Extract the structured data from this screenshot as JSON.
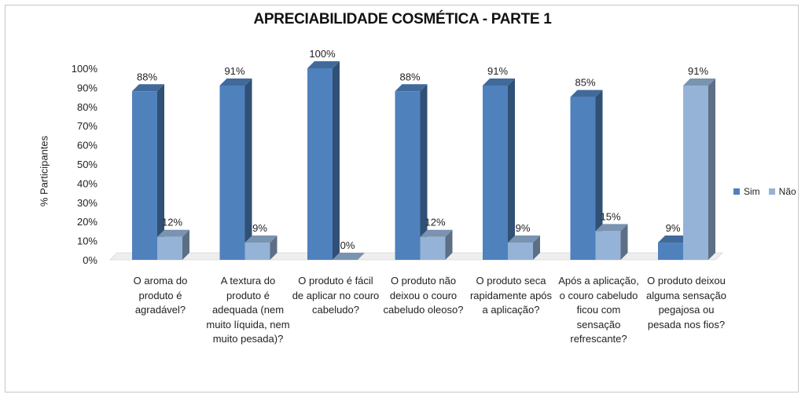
{
  "chart_data": {
    "type": "bar",
    "title": "APRECIABILIDADE COSMÉTICA - PARTE 1",
    "xlabel": "",
    "ylabel": "% Participantes",
    "ylim": [
      0,
      100
    ],
    "yticks": [
      "0%",
      "10%",
      "20%",
      "30%",
      "40%",
      "50%",
      "60%",
      "70%",
      "80%",
      "90%",
      "100%"
    ],
    "categories": [
      "O aroma do produto é agradável?",
      "A textura do produto é adequada (nem muito líquida, nem muito pesada)?",
      "O produto é fácil de aplicar no couro cabeludo?",
      "O produto não deixou o couro cabeludo oleoso?",
      "O produto seca rapidamente após a aplicação?",
      "Após a aplicação, o couro cabeludo ficou com sensação refrescante?",
      "O produto deixou alguma sensação pegajosa ou pesada nos fios?"
    ],
    "series": [
      {
        "name": "Sim",
        "color": "#4f81bd",
        "values": [
          88,
          91,
          100,
          88,
          91,
          85,
          9
        ],
        "labels": [
          "88%",
          "91%",
          "100%",
          "88%",
          "91%",
          "85%",
          "9%"
        ]
      },
      {
        "name": "Não",
        "color": "#95b3d7",
        "values": [
          12,
          9,
          0,
          12,
          9,
          15,
          91
        ],
        "labels": [
          "12%",
          "9%",
          "0%",
          "12%",
          "9%",
          "15%",
          "91%"
        ]
      }
    ],
    "legend_position": "right"
  }
}
